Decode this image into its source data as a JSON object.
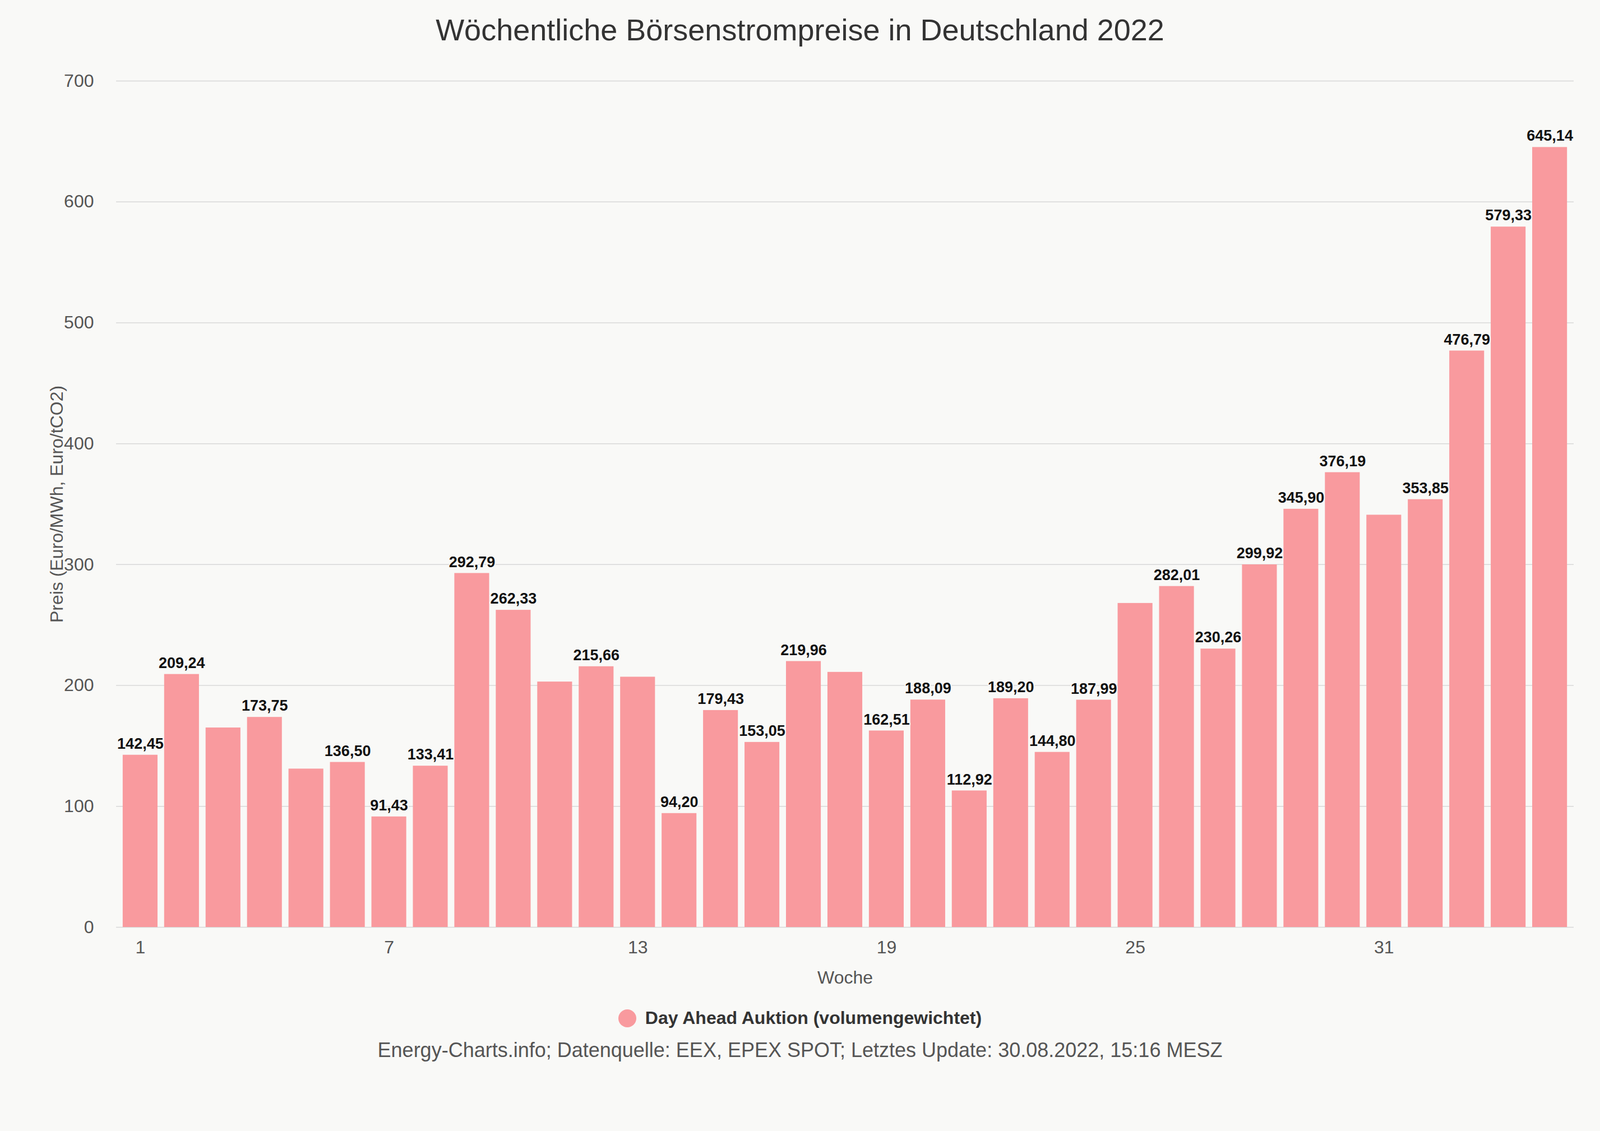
{
  "chart_data": {
    "type": "bar",
    "title": "Wöchentliche Börsenstrompreise in Deutschland 2022",
    "x_label": "Woche",
    "y_label": "Preis (Euro/MWh, Euro/tCO2)",
    "caption": "Energy-Charts.info; Datenquelle: EEX, EPEX SPOT; Letztes Update: 30.08.2022, 15:16 MESZ",
    "categories": [
      1,
      null,
      null,
      null,
      null,
      null,
      7,
      null,
      null,
      null,
      null,
      null,
      13,
      null,
      null,
      null,
      null,
      null,
      19,
      null,
      null,
      null,
      null,
      null,
      25,
      null,
      null,
      null,
      null,
      null,
      31,
      null,
      null,
      null,
      null
    ],
    "series": [
      {
        "name": "Day Ahead Auktion (volumengewichtet)",
        "color": "#f99a9e",
        "values": [
          142.45,
          209.24,
          165,
          173.75,
          131,
          136.5,
          91.43,
          133.41,
          292.79,
          262.33,
          203,
          215.66,
          207,
          94.2,
          179.43,
          153.05,
          219.96,
          211,
          162.51,
          188.09,
          112.92,
          189.2,
          144.8,
          187.99,
          268,
          282.01,
          230.26,
          299.92,
          345.9,
          376.19,
          341,
          353.85,
          476.79,
          579.33,
          645.14
        ],
        "value_labels": [
          "142,45",
          "209,24",
          null,
          "173,75",
          null,
          "136,50",
          "91,43",
          "133,41",
          "292,79",
          "262,33",
          null,
          "215,66",
          null,
          "94,20",
          "179,43",
          "153,05",
          "219,96",
          null,
          "162,51",
          "188,09",
          "112,92",
          "189,20",
          "144,80",
          "187,99",
          null,
          "282,01",
          "230,26",
          "299,92",
          "345,90",
          "376,19",
          null,
          "353,85",
          "476,79",
          "579,33",
          "645,14"
        ]
      }
    ],
    "ylim": [
      0,
      700
    ],
    "yticks": [
      0,
      100,
      200,
      300,
      400,
      500,
      600,
      700
    ],
    "grid": true,
    "data_labels": true,
    "legend": "bottom"
  }
}
